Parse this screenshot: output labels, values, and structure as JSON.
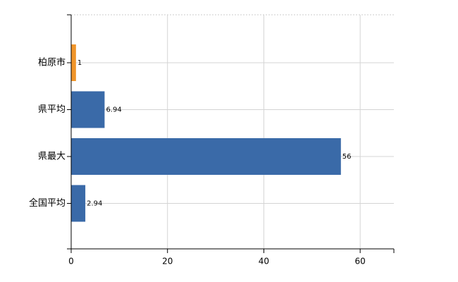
{
  "chart_data": {
    "type": "bar",
    "orientation": "horizontal",
    "categories": [
      "柏原市",
      "県平均",
      "県最大",
      "全国平均"
    ],
    "values": [
      1,
      6.94,
      56,
      2.94
    ],
    "colors": [
      "#f0952a",
      "#3a6aa8",
      "#3a6aa8",
      "#3a6aa8"
    ],
    "xlim": [
      0,
      67
    ],
    "xticks": [
      0,
      20,
      40,
      60
    ],
    "grid": true
  }
}
